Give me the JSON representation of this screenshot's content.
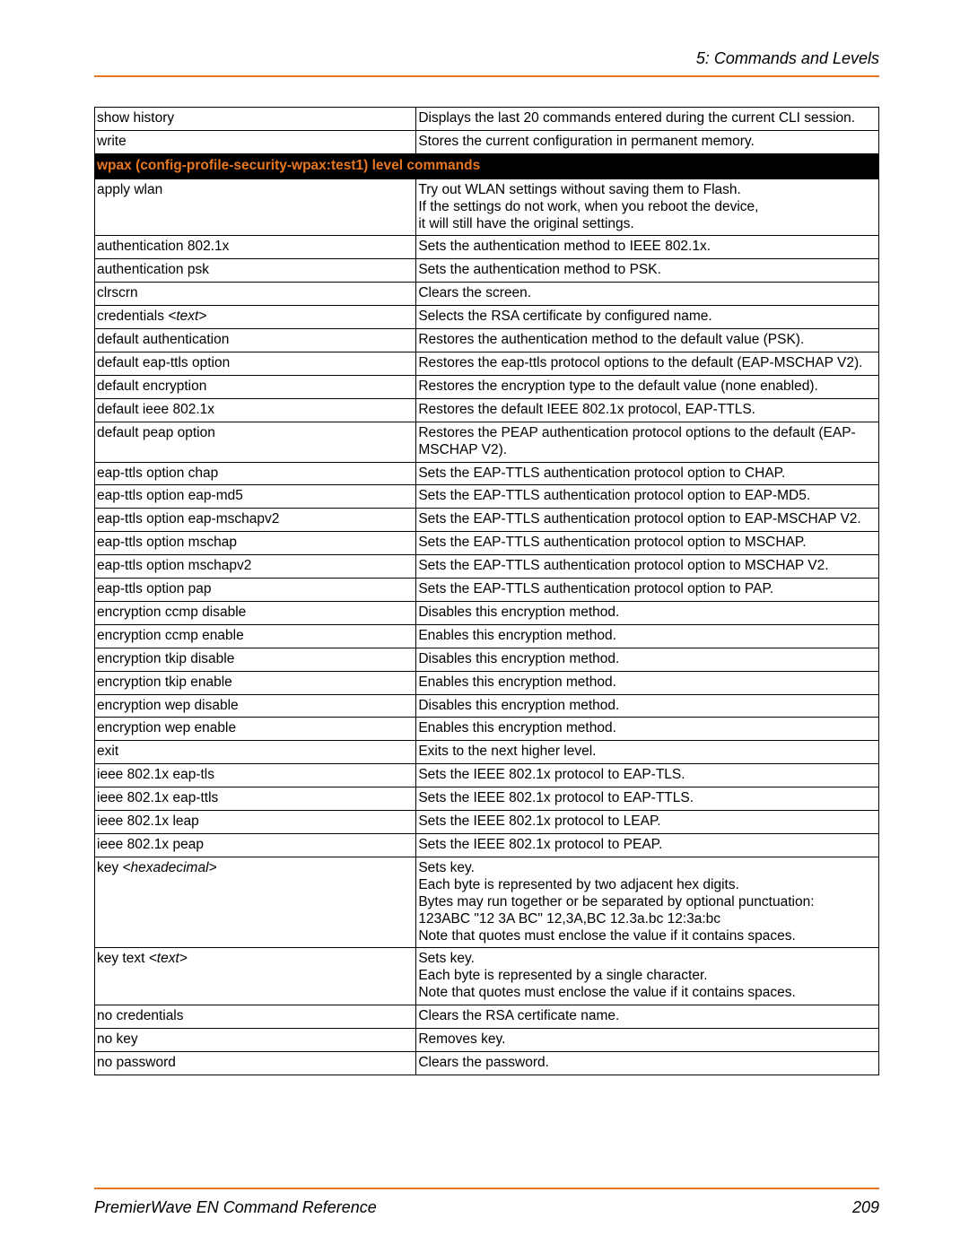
{
  "header": {
    "chapter": "5: Commands and Levels"
  },
  "colors": {
    "accent": "#e87722",
    "section_bg": "#000000",
    "section_fg": "#e87722",
    "border": "#000000",
    "text": "#000000"
  },
  "table": {
    "pre_rows": [
      {
        "cmd": "show history",
        "desc": [
          "Displays the last 20 commands entered during the current CLI session."
        ]
      },
      {
        "cmd": "write",
        "desc": [
          "Stores the current configuration in permanent memory."
        ]
      }
    ],
    "section_header": "wpax (config-profile-security-wpax:test1) level commands",
    "rows": [
      {
        "cmd": "apply wlan",
        "desc": [
          "Try out WLAN settings without saving them to Flash.",
          "If the settings do not work, when you reboot the device,",
          "it will still have the original settings."
        ]
      },
      {
        "cmd": "authentication 802.1x",
        "desc": [
          "Sets the authentication method to IEEE 802.1x."
        ]
      },
      {
        "cmd": "authentication psk",
        "desc": [
          "Sets the authentication method to PSK."
        ]
      },
      {
        "cmd": "clrscrn",
        "desc": [
          "Clears the screen."
        ]
      },
      {
        "cmd_pre": "credentials ",
        "cmd_ital": "<text>",
        "desc": [
          "Selects the RSA certificate by configured name."
        ]
      },
      {
        "cmd": "default authentication",
        "desc": [
          "Restores the authentication method to the default value (PSK)."
        ]
      },
      {
        "cmd": "default eap-ttls option",
        "desc": [
          "Restores the eap-ttls protocol options to the default (EAP-MSCHAP V2)."
        ]
      },
      {
        "cmd": "default encryption",
        "desc": [
          "Restores the encryption type to the default value (none enabled)."
        ]
      },
      {
        "cmd": "default ieee 802.1x",
        "desc": [
          "Restores the default IEEE 802.1x protocol, EAP-TTLS."
        ]
      },
      {
        "cmd": "default peap option",
        "desc": [
          "Restores the PEAP authentication protocol options to the default (EAP-MSCHAP V2)."
        ]
      },
      {
        "cmd": "eap-ttls option chap",
        "desc": [
          "Sets the EAP-TTLS authentication protocol option to CHAP."
        ]
      },
      {
        "cmd": "eap-ttls option eap-md5",
        "desc": [
          "Sets the EAP-TTLS authentication protocol option to EAP-MD5."
        ]
      },
      {
        "cmd": "eap-ttls option eap-mschapv2",
        "desc": [
          "Sets the EAP-TTLS authentication protocol option to EAP-MSCHAP V2."
        ]
      },
      {
        "cmd": "eap-ttls option mschap",
        "desc": [
          "Sets the EAP-TTLS authentication protocol option to MSCHAP."
        ]
      },
      {
        "cmd": "eap-ttls option mschapv2",
        "desc": [
          "Sets the EAP-TTLS authentication protocol option to MSCHAP V2."
        ]
      },
      {
        "cmd": "eap-ttls option pap",
        "desc": [
          "Sets the EAP-TTLS authentication protocol option to PAP."
        ]
      },
      {
        "cmd": "encryption ccmp disable",
        "desc": [
          "Disables this encryption method."
        ]
      },
      {
        "cmd": "encryption ccmp enable",
        "desc": [
          "Enables this encryption method."
        ]
      },
      {
        "cmd": "encryption tkip disable",
        "desc": [
          "Disables this encryption method."
        ]
      },
      {
        "cmd": "encryption tkip enable",
        "desc": [
          "Enables this encryption method."
        ]
      },
      {
        "cmd": "encryption wep disable",
        "desc": [
          "Disables this encryption method."
        ]
      },
      {
        "cmd": "encryption wep enable",
        "desc": [
          "Enables this encryption method."
        ]
      },
      {
        "cmd": "exit",
        "desc": [
          "Exits to the next higher level."
        ]
      },
      {
        "cmd": "ieee 802.1x eap-tls",
        "desc": [
          "Sets the IEEE 802.1x protocol to EAP-TLS."
        ]
      },
      {
        "cmd": "ieee 802.1x eap-ttls",
        "desc": [
          "Sets the IEEE 802.1x protocol to EAP-TTLS."
        ]
      },
      {
        "cmd": "ieee 802.1x leap",
        "desc": [
          "Sets the IEEE 802.1x protocol to LEAP."
        ]
      },
      {
        "cmd": "ieee 802.1x peap",
        "desc": [
          "Sets the IEEE 802.1x protocol to PEAP."
        ]
      },
      {
        "cmd_pre": "key ",
        "cmd_ital": "<hexadecimal>",
        "desc": [
          "Sets key.",
          "Each byte is represented by two adjacent hex digits.",
          "Bytes may run together or be separated by optional punctuation:",
          "123ABC \"12 3A BC\" 12,3A,BC 12.3a.bc 12:3a:bc",
          "Note that quotes must enclose the value if it contains spaces."
        ]
      },
      {
        "cmd_pre": "key text ",
        "cmd_ital": "<text>",
        "desc": [
          "Sets key.",
          "Each byte is represented by a single character.",
          "Note that quotes must enclose the value if it contains spaces."
        ]
      },
      {
        "cmd": "no credentials",
        "desc": [
          "Clears the RSA certificate name."
        ]
      },
      {
        "cmd": "no key",
        "desc": [
          "Removes key."
        ]
      },
      {
        "cmd": "no password",
        "desc": [
          "Clears the password."
        ]
      }
    ]
  },
  "footer": {
    "doc_title": "PremierWave EN Command Reference",
    "page_number": "209"
  }
}
